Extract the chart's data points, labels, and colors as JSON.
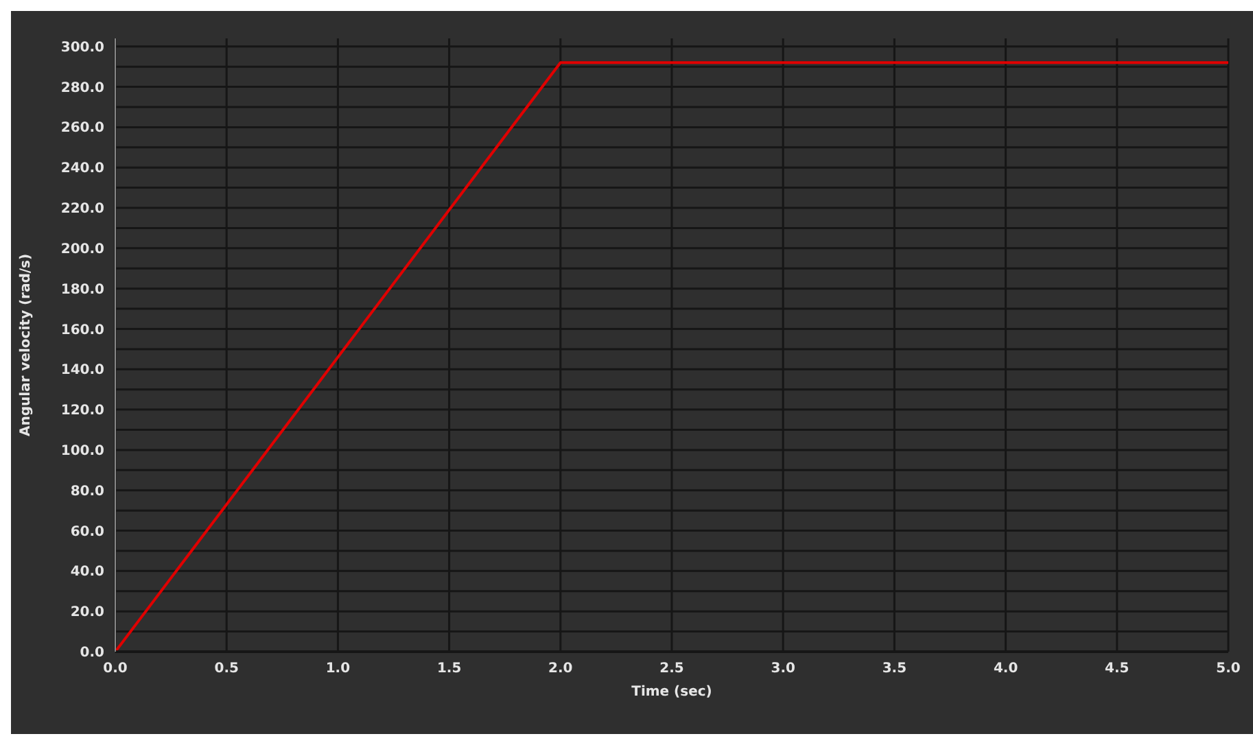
{
  "chart_data": {
    "type": "line",
    "xlabel": "Time (sec)",
    "ylabel": "Angular velocity (rad/s)",
    "x": [
      0,
      2,
      5
    ],
    "series": [
      {
        "color": "#e00000",
        "values": [
          0,
          292,
          292
        ]
      }
    ],
    "xlim": [
      0,
      5
    ],
    "xticks": [
      {
        "value": 0,
        "label": "0.0"
      },
      {
        "value": 0.5,
        "label": "0.5"
      },
      {
        "value": 1,
        "label": "1.0"
      },
      {
        "value": 1.5,
        "label": "1.5"
      },
      {
        "value": 2,
        "label": "2.0"
      },
      {
        "value": 2.5,
        "label": "2.5"
      },
      {
        "value": 3,
        "label": "3.0"
      },
      {
        "value": 3.5,
        "label": "3.5"
      },
      {
        "value": 4,
        "label": "4.0"
      },
      {
        "value": 4.5,
        "label": "4.5"
      },
      {
        "value": 5,
        "label": "5.0"
      }
    ],
    "ylim": [
      0,
      304
    ],
    "yticks": [
      {
        "value": 0,
        "label": "0.0"
      },
      {
        "value": 10,
        "label": null
      },
      {
        "value": 20,
        "label": "20.0"
      },
      {
        "value": 30,
        "label": null
      },
      {
        "value": 40,
        "label": "40.0"
      },
      {
        "value": 50,
        "label": null
      },
      {
        "value": 60,
        "label": "60.0"
      },
      {
        "value": 70,
        "label": null
      },
      {
        "value": 80,
        "label": "80.0"
      },
      {
        "value": 90,
        "label": null
      },
      {
        "value": 100,
        "label": "100.0"
      },
      {
        "value": 110,
        "label": null
      },
      {
        "value": 120,
        "label": "120.0"
      },
      {
        "value": 130,
        "label": null
      },
      {
        "value": 140,
        "label": "140.0"
      },
      {
        "value": 150,
        "label": null
      },
      {
        "value": 160,
        "label": "160.0"
      },
      {
        "value": 170,
        "label": null
      },
      {
        "value": 180,
        "label": "180.0"
      },
      {
        "value": 190,
        "label": null
      },
      {
        "value": 200,
        "label": "200.0"
      },
      {
        "value": 210,
        "label": null
      },
      {
        "value": 220,
        "label": "220.0"
      },
      {
        "value": 230,
        "label": null
      },
      {
        "value": 240,
        "label": "240.0"
      },
      {
        "value": 250,
        "label": null
      },
      {
        "value": 260,
        "label": "260.0"
      },
      {
        "value": 270,
        "label": null
      },
      {
        "value": 280,
        "label": "280.0"
      },
      {
        "value": 290,
        "label": null
      },
      {
        "value": 300,
        "label": "300.0"
      }
    ],
    "grid": true,
    "legend": false,
    "marker": "none",
    "line_style": "solid"
  }
}
